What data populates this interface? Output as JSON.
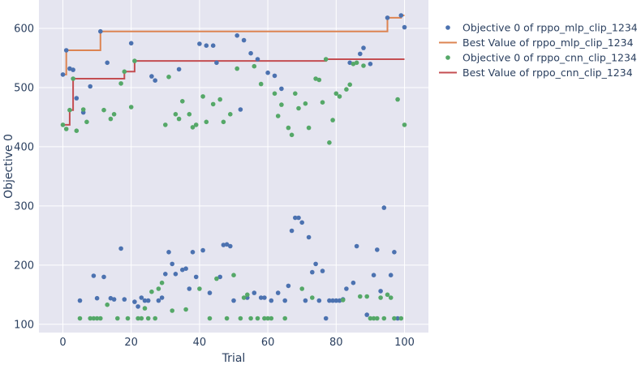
{
  "chart_data": {
    "type": "scatter",
    "title": "",
    "xlabel": "Trial",
    "ylabel": "Objective 0",
    "xlim": [
      -7,
      107
    ],
    "ylim": [
      86,
      648
    ],
    "x_ticks": [
      0,
      20,
      40,
      60,
      80,
      100
    ],
    "y_ticks": [
      100,
      200,
      300,
      400,
      500,
      600
    ],
    "grid": true,
    "legend_position": "right",
    "colors": {
      "background": "#e5e5f0",
      "grid": "#ffffff",
      "mlp_points": "#4c72b0",
      "mlp_best": "#dd8452",
      "cnn_points": "#55a868",
      "cnn_best": "#c44e52"
    },
    "series": [
      {
        "name": "Objective 0 of rppo_mlp_clip_1234",
        "kind": "scatter",
        "color": "#4c72b0",
        "points": [
          [
            0,
            522
          ],
          [
            1,
            563
          ],
          [
            2,
            532
          ],
          [
            3,
            530
          ],
          [
            4,
            482
          ],
          [
            5,
            140
          ],
          [
            6,
            458
          ],
          [
            8,
            502
          ],
          [
            9,
            182
          ],
          [
            10,
            144
          ],
          [
            11,
            595
          ],
          [
            12,
            180
          ],
          [
            13,
            542
          ],
          [
            14,
            144
          ],
          [
            15,
            142
          ],
          [
            17,
            228
          ],
          [
            18,
            142
          ],
          [
            20,
            575
          ],
          [
            21,
            138
          ],
          [
            22,
            130
          ],
          [
            23,
            145
          ],
          [
            24,
            140
          ],
          [
            25,
            140
          ],
          [
            26,
            519
          ],
          [
            27,
            512
          ],
          [
            28,
            140
          ],
          [
            29,
            145
          ],
          [
            30,
            185
          ],
          [
            31,
            222
          ],
          [
            32,
            202
          ],
          [
            33,
            185
          ],
          [
            34,
            531
          ],
          [
            35,
            192
          ],
          [
            36,
            194
          ],
          [
            37,
            160
          ],
          [
            38,
            222
          ],
          [
            39,
            180
          ],
          [
            40,
            574
          ],
          [
            41,
            225
          ],
          [
            42,
            571
          ],
          [
            43,
            153
          ],
          [
            44,
            571
          ],
          [
            45,
            542
          ],
          [
            46,
            180
          ],
          [
            47,
            234
          ],
          [
            48,
            235
          ],
          [
            49,
            232
          ],
          [
            50,
            140
          ],
          [
            51,
            588
          ],
          [
            52,
            463
          ],
          [
            53,
            580
          ],
          [
            54,
            145
          ],
          [
            55,
            558
          ],
          [
            56,
            153
          ],
          [
            57,
            548
          ],
          [
            58,
            145
          ],
          [
            59,
            145
          ],
          [
            60,
            525
          ],
          [
            61,
            140
          ],
          [
            62,
            520
          ],
          [
            63,
            153
          ],
          [
            64,
            498
          ],
          [
            65,
            140
          ],
          [
            66,
            165
          ],
          [
            67,
            258
          ],
          [
            68,
            280
          ],
          [
            69,
            280
          ],
          [
            70,
            272
          ],
          [
            71,
            140
          ],
          [
            72,
            247
          ],
          [
            73,
            188
          ],
          [
            74,
            202
          ],
          [
            75,
            140
          ],
          [
            76,
            190
          ],
          [
            77,
            110
          ],
          [
            78,
            140
          ],
          [
            79,
            140
          ],
          [
            80,
            140
          ],
          [
            81,
            140
          ],
          [
            82,
            142
          ],
          [
            83,
            160
          ],
          [
            84,
            542
          ],
          [
            85,
            170
          ],
          [
            86,
            232
          ],
          [
            87,
            557
          ],
          [
            88,
            567
          ],
          [
            89,
            116
          ],
          [
            90,
            540
          ],
          [
            91,
            183
          ],
          [
            92,
            226
          ],
          [
            93,
            156
          ],
          [
            94,
            297
          ],
          [
            95,
            618
          ],
          [
            96,
            183
          ],
          [
            97,
            222
          ],
          [
            98,
            110
          ],
          [
            99,
            622
          ],
          [
            100,
            602
          ]
        ]
      },
      {
        "name": "Best Value of rppo_mlp_clip_1234",
        "kind": "step",
        "color": "#dd8452",
        "points": [
          [
            0,
            522
          ],
          [
            1,
            563
          ],
          [
            11,
            595
          ],
          [
            95,
            618
          ],
          [
            99,
            622
          ],
          [
            100,
            622
          ]
        ]
      },
      {
        "name": "Objective 0 of rppo_cnn_clip_1234",
        "kind": "scatter",
        "color": "#55a868",
        "points": [
          [
            0,
            437
          ],
          [
            1,
            430
          ],
          [
            2,
            462
          ],
          [
            3,
            515
          ],
          [
            4,
            427
          ],
          [
            5,
            110
          ],
          [
            6,
            463
          ],
          [
            7,
            442
          ],
          [
            8,
            110
          ],
          [
            9,
            110
          ],
          [
            10,
            110
          ],
          [
            11,
            110
          ],
          [
            12,
            462
          ],
          [
            13,
            133
          ],
          [
            14,
            447
          ],
          [
            15,
            455
          ],
          [
            16,
            110
          ],
          [
            17,
            507
          ],
          [
            18,
            527
          ],
          [
            19,
            110
          ],
          [
            20,
            467
          ],
          [
            21,
            545
          ],
          [
            22,
            110
          ],
          [
            23,
            110
          ],
          [
            24,
            127
          ],
          [
            25,
            110
          ],
          [
            26,
            155
          ],
          [
            27,
            110
          ],
          [
            28,
            160
          ],
          [
            29,
            170
          ],
          [
            30,
            437
          ],
          [
            31,
            518
          ],
          [
            32,
            123
          ],
          [
            33,
            455
          ],
          [
            34,
            447
          ],
          [
            35,
            477
          ],
          [
            36,
            125
          ],
          [
            37,
            455
          ],
          [
            38,
            433
          ],
          [
            39,
            437
          ],
          [
            40,
            160
          ],
          [
            41,
            485
          ],
          [
            42,
            442
          ],
          [
            43,
            110
          ],
          [
            44,
            472
          ],
          [
            45,
            177
          ],
          [
            46,
            480
          ],
          [
            47,
            442
          ],
          [
            48,
            110
          ],
          [
            49,
            455
          ],
          [
            50,
            183
          ],
          [
            51,
            532
          ],
          [
            52,
            110
          ],
          [
            53,
            145
          ],
          [
            54,
            150
          ],
          [
            55,
            110
          ],
          [
            56,
            536
          ],
          [
            57,
            110
          ],
          [
            58,
            506
          ],
          [
            59,
            110
          ],
          [
            60,
            110
          ],
          [
            61,
            110
          ],
          [
            62,
            490
          ],
          [
            63,
            452
          ],
          [
            64,
            471
          ],
          [
            65,
            110
          ],
          [
            66,
            432
          ],
          [
            67,
            420
          ],
          [
            68,
            490
          ],
          [
            69,
            465
          ],
          [
            70,
            160
          ],
          [
            71,
            473
          ],
          [
            72,
            432
          ],
          [
            73,
            145
          ],
          [
            74,
            515
          ],
          [
            75,
            513
          ],
          [
            76,
            475
          ],
          [
            77,
            548
          ],
          [
            78,
            407
          ],
          [
            79,
            445
          ],
          [
            80,
            490
          ],
          [
            81,
            485
          ],
          [
            82,
            141
          ],
          [
            83,
            497
          ],
          [
            84,
            505
          ],
          [
            85,
            540
          ],
          [
            86,
            542
          ],
          [
            87,
            147
          ],
          [
            88,
            537
          ],
          [
            89,
            147
          ],
          [
            90,
            110
          ],
          [
            91,
            110
          ],
          [
            92,
            110
          ],
          [
            93,
            145
          ],
          [
            94,
            110
          ],
          [
            95,
            150
          ],
          [
            96,
            145
          ],
          [
            97,
            110
          ],
          [
            98,
            480
          ],
          [
            99,
            110
          ],
          [
            100,
            437
          ]
        ]
      },
      {
        "name": "Best Value of rppo_cnn_clip_1234",
        "kind": "step",
        "color": "#c44e52",
        "points": [
          [
            0,
            437
          ],
          [
            2,
            462
          ],
          [
            3,
            515
          ],
          [
            17,
            515
          ],
          [
            18,
            527
          ],
          [
            21,
            545
          ],
          [
            77,
            548
          ],
          [
            100,
            548
          ]
        ]
      }
    ]
  }
}
